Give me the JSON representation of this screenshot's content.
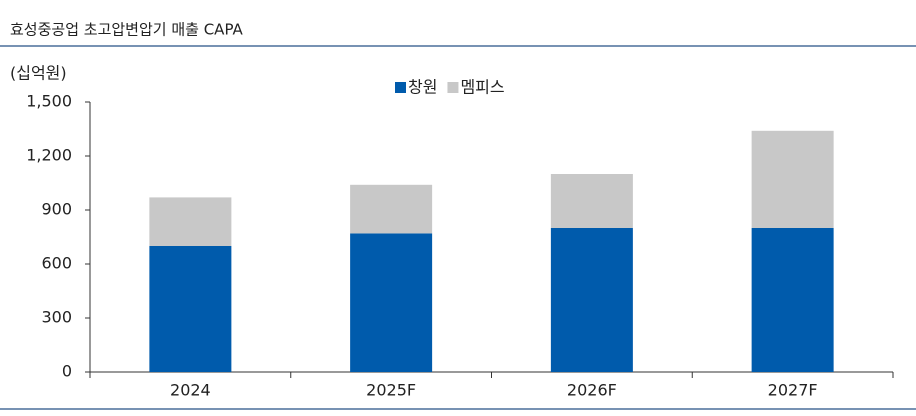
{
  "chart_data": {
    "type": "bar",
    "stacked": true,
    "title": "효성중공업 초고압변압기 매출 CAPA",
    "y_label": "(십억원)",
    "categories": [
      "2024",
      "2025F",
      "2026F",
      "2027F"
    ],
    "series": [
      {
        "name": "창원",
        "color": "#005bac",
        "values": [
          700,
          770,
          800,
          800
        ]
      },
      {
        "name": "멤피스",
        "color": "#c8c8c8",
        "values": [
          270,
          270,
          300,
          540
        ]
      }
    ],
    "ylim": [
      0,
      1500
    ],
    "yticks": [
      0,
      300,
      600,
      900,
      {
        "value": 1200,
        "label": "1,200"
      },
      {
        "value": 1500,
        "label": "1,500"
      }
    ],
    "legend": "top"
  }
}
